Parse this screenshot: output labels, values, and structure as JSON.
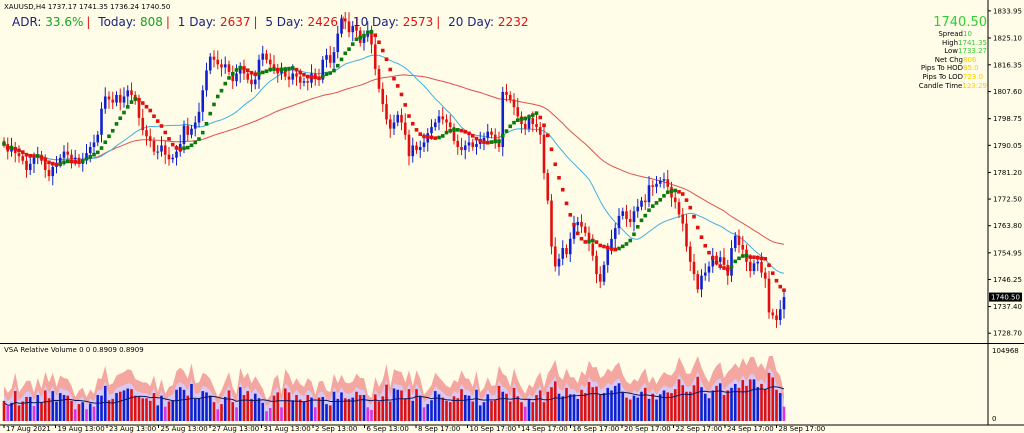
{
  "header": {
    "symbol_line": "XAUUSD,H4  1737.17 1741.35 1736.24 1740.50",
    "adr_label": "ADR:",
    "adr_value": "33.6%",
    "today_label": "Today:",
    "today_value": "808",
    "d1_label": "1 Day:",
    "d1_value": "2637",
    "d5_label": "5 Day:",
    "d5_value": "2426",
    "d10_label": "10 Day:",
    "d10_value": "2573",
    "d20_label": "20 Day:",
    "d20_value": "2232"
  },
  "info_panel": {
    "price": "1740.50",
    "rows": [
      {
        "key": "Spread",
        "value": "10",
        "color": "#33cc33"
      },
      {
        "key": "High",
        "value": "1741.35",
        "color": "#33cc33"
      },
      {
        "key": "Low",
        "value": "1733.27",
        "color": "#33cc33"
      },
      {
        "key": "Net Chg",
        "value": "806",
        "color": "#ffcc00"
      },
      {
        "key": "Pips To HOD",
        "value": "85.0",
        "color": "#ffcc00"
      },
      {
        "key": "Pips To LOD",
        "value": "723.0",
        "color": "#ffcc00"
      },
      {
        "key": "Candle Time",
        "value": "123:29",
        "color": "#ffcc00"
      }
    ]
  },
  "volume_panel": {
    "title": "VSA Relative Volume 0 0 0.8909 0.8909",
    "axis_top": "104968",
    "axis_bottom": "0"
  },
  "colors": {
    "bull": "#1020d0",
    "bear": "#e01010",
    "ma_up": "#0a7a0a",
    "ma_down": "#e01010",
    "ma_slow": "#e05050",
    "ma_mid": "#40b0e0",
    "background": "#fffde7"
  },
  "chart_data": {
    "type": "candlestick",
    "symbol": "XAUUSD",
    "timeframe": "H4",
    "ohlc_current": {
      "open": 1737.17,
      "high": 1741.35,
      "low": 1736.24,
      "close": 1740.5
    },
    "current_price_label": "1740.50",
    "y_ticks": [
      1833.95,
      1825.1,
      1816.35,
      1807.6,
      1798.75,
      1790.05,
      1781.2,
      1772.5,
      1763.8,
      1754.95,
      1746.25,
      1737.4,
      1728.7
    ],
    "ylim": [
      1725.5,
      1837.5
    ],
    "x_tick_labels": [
      "17 Aug 2021",
      "19 Aug 13:00",
      "23 Aug 13:00",
      "25 Aug 13:00",
      "27 Aug 13:00",
      "31 Aug 13:00",
      "2 Sep 13:00",
      "6 Sep 13:00",
      "8 Sep 17:00",
      "10 Sep 17:00",
      "14 Sep 17:00",
      "16 Sep 17:00",
      "20 Sep 17:00",
      "22 Sep 17:00",
      "24 Sep 17:00",
      "28 Sep 17:00"
    ],
    "closes": [
      1790.5,
      1788.0,
      1789.5,
      1787.5,
      1786.5,
      1785.0,
      1782.0,
      1784.0,
      1786.0,
      1787.0,
      1785.0,
      1782.0,
      1780.0,
      1783.0,
      1784.0,
      1786.0,
      1788.0,
      1787.0,
      1785.5,
      1786.0,
      1784.0,
      1785.5,
      1787.5,
      1789.5,
      1791.0,
      1793.5,
      1802.0,
      1806.0,
      1805.0,
      1804.0,
      1806.5,
      1804.0,
      1806.0,
      1808.0,
      1806.5,
      1804.5,
      1799.0,
      1795.0,
      1793.0,
      1791.5,
      1788.0,
      1788.0,
      1790.0,
      1787.0,
      1785.5,
      1786.0,
      1788.0,
      1790.5,
      1796.5,
      1793.5,
      1795.5,
      1797.5,
      1801.0,
      1808.0,
      1814.5,
      1819.0,
      1818.0,
      1816.5,
      1815.5,
      1816.5,
      1814.0,
      1811.0,
      1813.5,
      1815.5,
      1813.5,
      1811.5,
      1810.0,
      1811.5,
      1818.0,
      1820.0,
      1818.0,
      1816.5,
      1815.0,
      1813.5,
      1814.5,
      1812.5,
      1811.5,
      1813.5,
      1812.5,
      1810.5,
      1811.0,
      1810.5,
      1813.5,
      1812.5,
      1811.5,
      1818.0,
      1819.5,
      1817.0,
      1820.5,
      1826.5,
      1831.5,
      1830.5,
      1827.0,
      1829.0,
      1827.5,
      1823.5,
      1825.5,
      1827.5,
      1823.0,
      1815.0,
      1808.5,
      1803.5,
      1798.5,
      1795.5,
      1797.5,
      1800.0,
      1797.5,
      1793.5,
      1786.5,
      1790.0,
      1788.5,
      1789.5,
      1791.0,
      1794.0,
      1796.0,
      1797.5,
      1799.5,
      1798.5,
      1797.5,
      1796.0,
      1791.5,
      1789.5,
      1788.5,
      1790.0,
      1791.0,
      1789.5,
      1790.5,
      1791.5,
      1792.5,
      1794.5,
      1793.5,
      1791.5,
      1789.5,
      1807.5,
      1806.5,
      1805.0,
      1802.5,
      1799.5,
      1797.0,
      1795.5,
      1799.0,
      1797.0,
      1796.0,
      1793.5,
      1781.0,
      1772.0,
      1757.0,
      1750.5,
      1753.0,
      1756.5,
      1754.5,
      1759.5,
      1764.0,
      1765.0,
      1763.5,
      1761.5,
      1758.0,
      1754.0,
      1748.0,
      1745.5,
      1751.0,
      1756.0,
      1759.5,
      1763.0,
      1767.0,
      1768.5,
      1766.0,
      1765.0,
      1768.5,
      1770.0,
      1772.0,
      1771.5,
      1777.0,
      1776.5,
      1777.5,
      1778.5,
      1779.0,
      1776.5,
      1773.0,
      1771.5,
      1767.5,
      1764.5,
      1757.0,
      1752.0,
      1748.0,
      1743.0,
      1747.5,
      1748.5,
      1750.5,
      1754.0,
      1752.0,
      1753.5,
      1751.0,
      1747.5,
      1756.5,
      1760.5,
      1757.5,
      1756.0,
      1752.0,
      1749.0,
      1751.5,
      1752.0,
      1748.5,
      1746.5,
      1735.5,
      1734.5,
      1733.0,
      1736.5,
      1740.5
    ],
    "volume_relative": [
      0.31,
      0.23,
      0.28,
      0.46,
      0.24,
      0.3,
      0.37,
      0.37,
      0.23,
      0.4,
      0.28,
      0.47,
      0.35,
      0.46,
      0.3,
      0.43,
      0.4,
      0.39,
      0.31,
      0.18,
      0.26,
      0.29,
      0.18,
      0.27,
      0.22,
      0.4,
      0.39,
      0.54,
      0.32,
      0.34,
      0.43,
      0.45,
      0.47,
      0.5,
      0.49,
      0.39,
      0.37,
      0.35,
      0.35,
      0.31,
      0.43,
      0.24,
      0.39,
      0.22,
      0.3,
      0.32,
      0.48,
      0.52,
      0.48,
      0.39,
      0.57,
      0.34,
      0.35,
      0.46,
      0.44,
      0.39,
      0.29,
      0.18,
      0.26,
      0.37,
      0.47,
      0.29,
      0.21,
      0.52,
      0.4,
      0.46,
      0.34,
      0.42,
      0.35,
      0.28,
      0.15,
      0.2,
      0.39,
      0.44,
      0.21,
      0.5,
      0.44,
      0.32,
      0.4,
      0.33,
      0.3,
      0.4,
      0.36,
      0.21,
      0.36,
      0.37,
      0.26,
      0.24,
      0.45,
      0.34,
      0.44,
      0.35,
      0.34,
      0.36,
      0.45,
      0.4,
      0.4,
      0.21,
      0.17,
      0.41,
      0.3,
      0.38,
      0.56,
      0.3,
      0.5,
      0.48,
      0.47,
      0.35,
      0.49,
      0.31,
      0.49,
      0.39,
      0.21,
      0.26,
      0.32,
      0.46,
      0.41,
      0.36,
      0.31,
      0.29,
      0.38,
      0.35,
      0.49,
      0.4,
      0.39,
      0.3,
      0.48,
      0.24,
      0.29,
      0.41,
      0.31,
      0.32,
      0.54,
      0.45,
      0.42,
      0.3,
      0.51,
      0.38,
      0.29,
      0.22,
      0.33,
      0.29,
      0.4,
      0.47,
      0.29,
      0.45,
      0.52,
      0.61,
      0.42,
      0.38,
      0.51,
      0.41,
      0.41,
      0.34,
      0.48,
      0.43,
      0.6,
      0.52,
      0.53,
      0.4,
      0.43,
      0.51,
      0.47,
      0.54,
      0.58,
      0.44,
      0.36,
      0.33,
      0.39,
      0.36,
      0.45,
      0.51,
      0.34,
      0.42,
      0.33,
      0.41,
      0.47,
      0.44,
      0.43,
      0.49,
      0.64,
      0.55,
      0.45,
      0.45,
      0.55,
      0.68,
      0.52,
      0.42,
      0.35,
      0.47,
      0.54,
      0.58,
      0.4,
      0.47,
      0.51,
      0.57,
      0.51,
      0.63,
      0.54,
      0.64,
      0.64,
      0.52,
      0.57,
      0.49,
      0.74,
      0.67,
      0.48,
      0.43,
      0.22
    ]
  }
}
